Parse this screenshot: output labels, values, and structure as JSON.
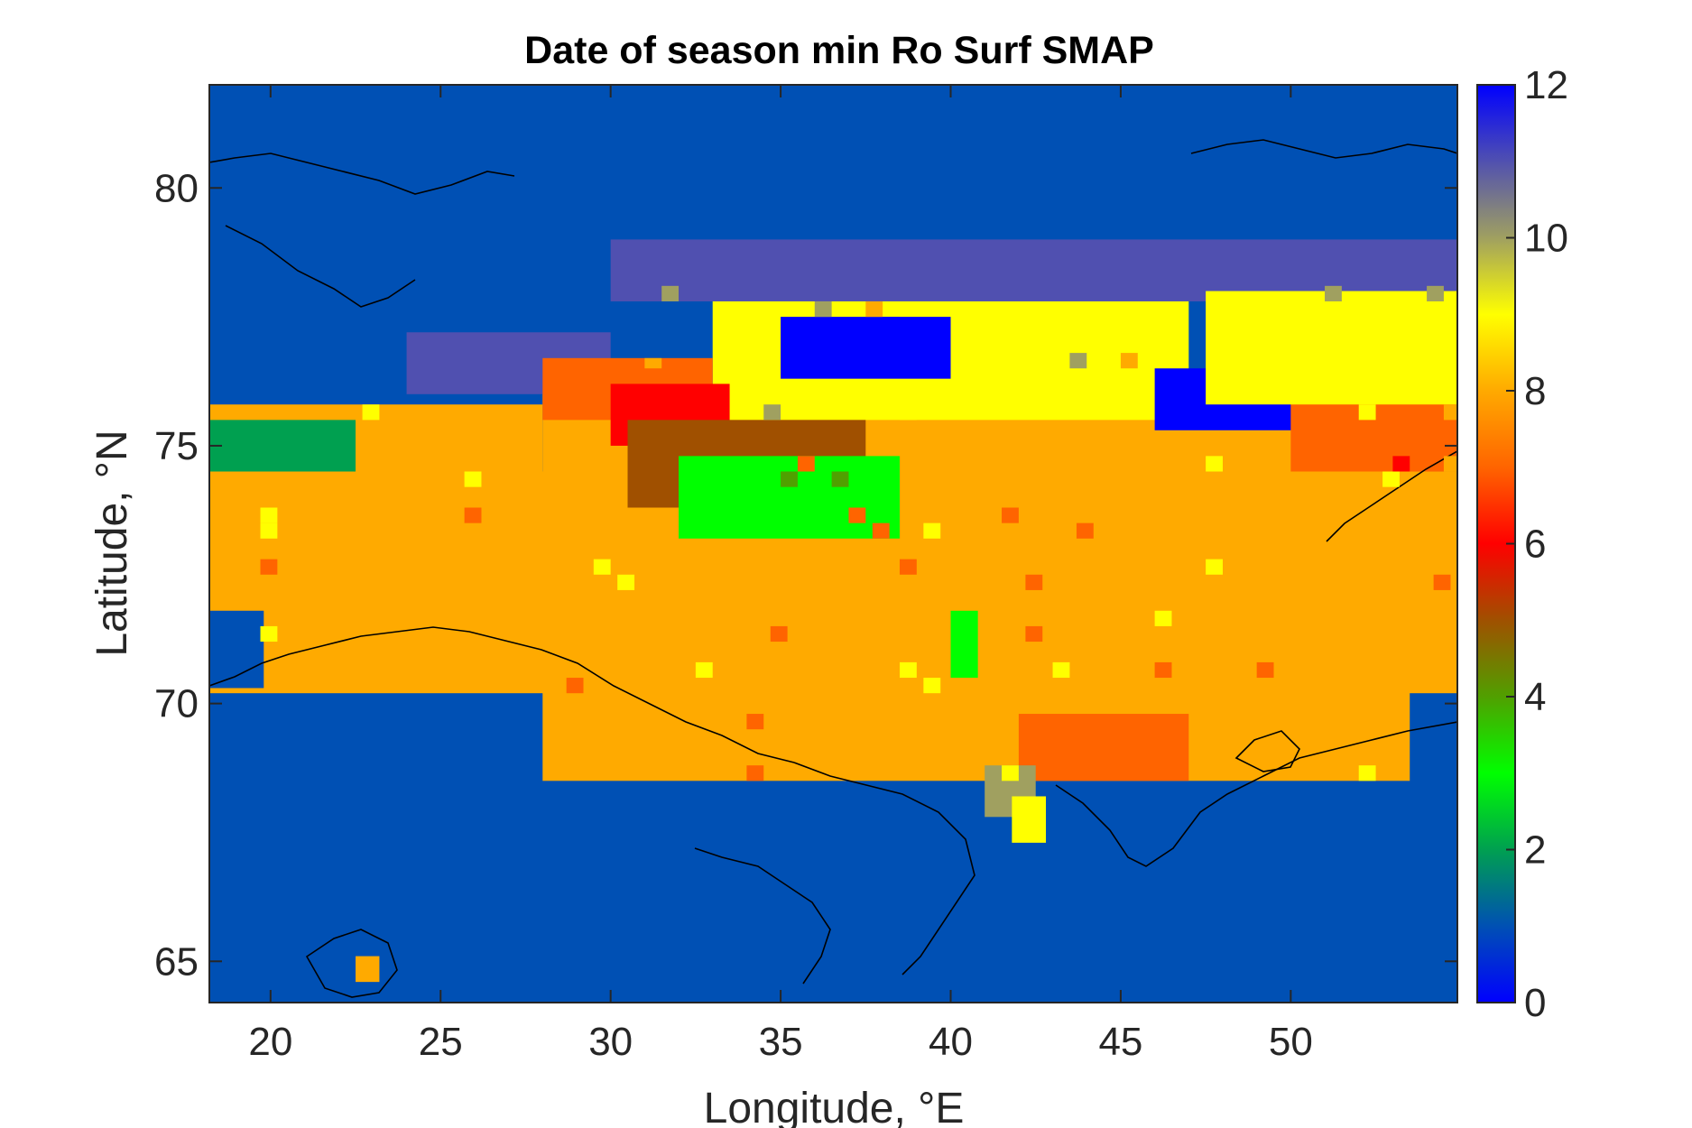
{
  "chart_data": {
    "type": "heatmap",
    "title": "Date of season min Ro Surf SMAP",
    "xlabel": "Longitude, °E",
    "ylabel": "Latitude, °N",
    "xlim": [
      18.2,
      54.9
    ],
    "ylim": [
      64.2,
      82.0
    ],
    "xticks": [
      20,
      25,
      30,
      35,
      40,
      45,
      50
    ],
    "yticks": [
      65,
      70,
      75,
      80
    ],
    "colorbar": {
      "min": 0,
      "max": 12,
      "ticks": [
        0,
        2,
        4,
        6,
        8,
        10,
        12
      ]
    },
    "background_value": 1,
    "coastlines": true,
    "grid": false,
    "regions": [
      {
        "value": 8,
        "lon": [
          18.2,
          54.9
        ],
        "lat": [
          70.2,
          74.5
        ]
      },
      {
        "value": 8,
        "lon": [
          28.0,
          53.5
        ],
        "lat": [
          68.5,
          76.0
        ]
      },
      {
        "value": 8,
        "lon": [
          18.2,
          28.0
        ],
        "lat": [
          71.5,
          75.8
        ]
      },
      {
        "value": 9,
        "lon": [
          33.0,
          47.0
        ],
        "lat": [
          75.5,
          78.2
        ]
      },
      {
        "value": 11,
        "lon": [
          30.0,
          54.9
        ],
        "lat": [
          77.8,
          79.0
        ]
      },
      {
        "value": 11,
        "lon": [
          24.0,
          30.0
        ],
        "lat": [
          76.0,
          77.2
        ]
      },
      {
        "value": 12,
        "lon": [
          35.0,
          40.0
        ],
        "lat": [
          76.3,
          77.5
        ]
      },
      {
        "value": 12,
        "lon": [
          46.0,
          51.0
        ],
        "lat": [
          75.3,
          76.5
        ]
      },
      {
        "value": 7,
        "lon": [
          28.0,
          33.0
        ],
        "lat": [
          75.5,
          76.7
        ]
      },
      {
        "value": 6,
        "lon": [
          30.0,
          33.5
        ],
        "lat": [
          75.0,
          76.2
        ]
      },
      {
        "value": 5,
        "lon": [
          30.5,
          37.5
        ],
        "lat": [
          73.8,
          75.5
        ]
      },
      {
        "value": 2,
        "lon": [
          18.2,
          22.5
        ],
        "lat": [
          74.5,
          75.5
        ]
      },
      {
        "value": 3,
        "lon": [
          32.0,
          38.5
        ],
        "lat": [
          73.2,
          74.8
        ]
      },
      {
        "value": 3,
        "lon": [
          40.0,
          40.8
        ],
        "lat": [
          70.5,
          71.8
        ]
      },
      {
        "value": 1,
        "lon": [
          18.2,
          19.8
        ],
        "lat": [
          70.3,
          71.8
        ]
      },
      {
        "value": 7,
        "lon": [
          42.0,
          47.0
        ],
        "lat": [
          68.5,
          69.8
        ]
      },
      {
        "value": 10,
        "lon": [
          41.0,
          42.5
        ],
        "lat": [
          67.8,
          68.8
        ]
      },
      {
        "value": 9,
        "lon": [
          41.8,
          42.8
        ],
        "lat": [
          67.3,
          68.2
        ]
      },
      {
        "value": 7,
        "lon": [
          50.0,
          54.9
        ],
        "lat": [
          74.5,
          77.5
        ]
      },
      {
        "value": 9,
        "lon": [
          47.5,
          54.9
        ],
        "lat": [
          75.8,
          78.0
        ]
      },
      {
        "value": 8,
        "lon": [
          22.5,
          23.2
        ],
        "lat": [
          64.6,
          65.1
        ]
      }
    ]
  }
}
